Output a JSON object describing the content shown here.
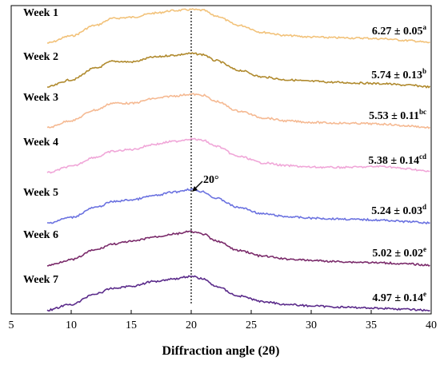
{
  "chart_data": {
    "type": "line",
    "xlabel": "Diffraction angle (2θ)",
    "ylabel": "",
    "title": "",
    "xlim": [
      5,
      40
    ],
    "xticks": [
      5,
      10,
      15,
      20,
      25,
      30,
      35,
      40
    ],
    "x_range": [
      8,
      40
    ],
    "reference_line_x": 20,
    "annotation": {
      "text": "20°",
      "x": 20,
      "series_index": 4
    },
    "series": [
      {
        "name": "Week 1",
        "value_text": "6.27 ± 0.05",
        "superscript": "a",
        "color": "#f2c27a",
        "x": [
          8,
          10,
          12,
          13.5,
          15,
          17,
          18.5,
          20,
          21,
          22,
          24,
          26,
          28,
          30,
          32,
          34,
          36,
          38,
          40
        ],
        "y": [
          0.05,
          0.25,
          0.55,
          0.75,
          0.78,
          0.9,
          0.97,
          1.0,
          0.98,
          0.82,
          0.55,
          0.35,
          0.26,
          0.22,
          0.2,
          0.19,
          0.17,
          0.12,
          0.06
        ]
      },
      {
        "name": "Week 2",
        "value_text": "5.74 ± 0.13",
        "superscript": "b",
        "color": "#b08a2e",
        "x": [
          8,
          10,
          12,
          13.5,
          15,
          17,
          18.5,
          20,
          21,
          22,
          24,
          26,
          28,
          30,
          32,
          34,
          36,
          38,
          40
        ],
        "y": [
          0.05,
          0.25,
          0.58,
          0.78,
          0.76,
          0.9,
          0.95,
          1.0,
          0.97,
          0.8,
          0.52,
          0.33,
          0.25,
          0.21,
          0.18,
          0.16,
          0.14,
          0.1,
          0.05
        ]
      },
      {
        "name": "Week 3",
        "value_text": "5.53 ± 0.11",
        "superscript": "bc",
        "color": "#f5b992",
        "x": [
          8,
          10,
          12,
          13.5,
          15,
          17,
          18.5,
          20,
          21,
          22,
          24,
          26,
          28,
          30,
          32,
          34,
          36,
          38,
          40
        ],
        "y": [
          0.05,
          0.25,
          0.55,
          0.75,
          0.74,
          0.88,
          0.95,
          1.0,
          0.97,
          0.8,
          0.52,
          0.33,
          0.24,
          0.2,
          0.18,
          0.17,
          0.15,
          0.1,
          0.05
        ]
      },
      {
        "name": "Week 4",
        "value_text": "5.38 ± 0.14",
        "superscript": "cd",
        "color": "#f0a6d8",
        "x": [
          8,
          10,
          12,
          13.5,
          15,
          17,
          18.5,
          20,
          21,
          22,
          24,
          26,
          28,
          30,
          32,
          34,
          36,
          38,
          40
        ],
        "y": [
          0.04,
          0.22,
          0.48,
          0.65,
          0.7,
          0.85,
          0.93,
          1.0,
          0.96,
          0.8,
          0.5,
          0.32,
          0.24,
          0.2,
          0.19,
          0.2,
          0.22,
          0.15,
          0.07
        ]
      },
      {
        "name": "Week 5",
        "value_text": "5.24 ± 0.03",
        "superscript": "d",
        "color": "#6b72e0",
        "x": [
          8,
          10,
          12,
          13.5,
          15,
          17,
          18.5,
          20,
          21,
          22,
          24,
          26,
          28,
          30,
          32,
          34,
          36,
          38,
          40
        ],
        "y": [
          0.04,
          0.2,
          0.48,
          0.65,
          0.7,
          0.82,
          0.92,
          1.0,
          0.93,
          0.75,
          0.48,
          0.3,
          0.22,
          0.18,
          0.16,
          0.14,
          0.12,
          0.08,
          0.04
        ]
      },
      {
        "name": "Week 6",
        "value_text": "5.02 ± 0.02",
        "superscript": "e",
        "color": "#7a2a6a",
        "x": [
          8,
          10,
          12,
          13.5,
          15,
          17,
          18.5,
          20,
          21,
          22,
          24,
          26,
          28,
          30,
          32,
          34,
          36,
          38,
          40
        ],
        "y": [
          0.04,
          0.2,
          0.48,
          0.65,
          0.72,
          0.85,
          0.93,
          1.0,
          0.93,
          0.74,
          0.46,
          0.3,
          0.22,
          0.18,
          0.15,
          0.13,
          0.11,
          0.08,
          0.04
        ]
      },
      {
        "name": "Week 7",
        "value_text": "4.97 ± 0.14",
        "superscript": "e",
        "color": "#5a2a8a",
        "x": [
          8,
          10,
          12,
          13.5,
          15,
          17,
          18.5,
          20,
          21,
          22,
          24,
          26,
          28,
          30,
          32,
          34,
          36,
          38,
          40
        ],
        "y": [
          0.04,
          0.2,
          0.5,
          0.66,
          0.72,
          0.86,
          0.93,
          1.0,
          0.93,
          0.72,
          0.44,
          0.28,
          0.2,
          0.16,
          0.13,
          0.11,
          0.09,
          0.06,
          0.03
        ]
      }
    ]
  }
}
